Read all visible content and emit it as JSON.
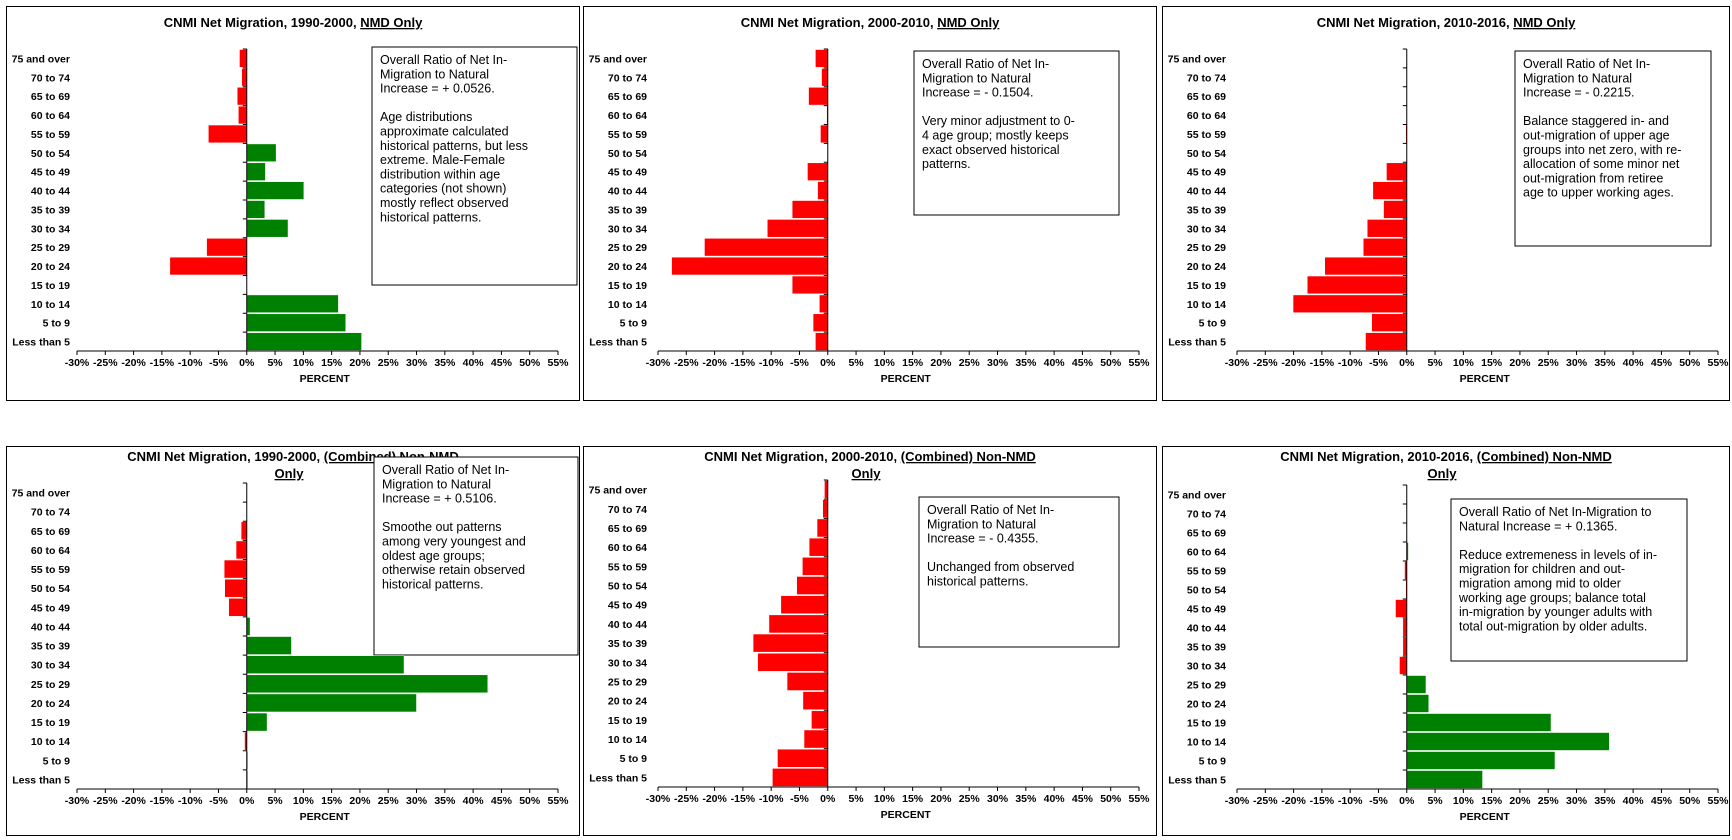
{
  "axis_label": "PERCENT",
  "colors": {
    "positive": "#008000",
    "negative": "#ff0000",
    "frame": "#000000",
    "note_bg": "#ffffff"
  },
  "chart_data": [
    {
      "type": "bar",
      "orientation": "horizontal",
      "title": "CNMI Net Migration, 1990-2000, ",
      "title_underlined": "NMD Only",
      "xlabel": "PERCENT",
      "xlim": [
        -30,
        55
      ],
      "x_ticks": [
        "-30%",
        "-25%",
        "-20%",
        "-15%",
        "-10%",
        "-5%",
        "0%",
        "5%",
        "10%",
        "15%",
        "20%",
        "25%",
        "30%",
        "35%",
        "40%",
        "45%",
        "50%",
        "55%"
      ],
      "categories": [
        "75 and over",
        "70 to 74",
        "65 to 69",
        "60 to 64",
        "55 to 59",
        "50 to 54",
        "45 to 49",
        "40 to 44",
        "35 to 39",
        "30 to 34",
        "25 to 29",
        "20 to 24",
        "15 to 19",
        "10 to 14",
        "5 to 9",
        "Less than 5"
      ],
      "values": [
        -1.3,
        -0.9,
        -1.7,
        -1.5,
        -6.8,
        5.2,
        3.3,
        10.1,
        3.2,
        7.3,
        -7.1,
        -13.6,
        0,
        16.2,
        17.5,
        20.3
      ],
      "note": [
        "Overall Ratio of Net In-",
        "Migration to Natural",
        "Increase = + 0.0526.",
        "",
        "Age distributions",
        "approximate calculated",
        "historical patterns, but less",
        "extreme. Male-Female",
        "distribution within age",
        "categories (not shown)",
        "mostly reflect observed",
        "historical patterns."
      ]
    },
    {
      "type": "bar",
      "orientation": "horizontal",
      "title": "CNMI Net Migration, 2000-2010, ",
      "title_underlined": "NMD Only",
      "xlabel": "PERCENT",
      "xlim": [
        -30,
        55
      ],
      "x_ticks": [
        "-30%",
        "-25%",
        "-20%",
        "-15%",
        "-10%",
        "-5%",
        "0%",
        "5%",
        "10%",
        "15%",
        "20%",
        "25%",
        "30%",
        "35%",
        "40%",
        "45%",
        "50%",
        "55%"
      ],
      "categories": [
        "75 and over",
        "70 to 74",
        "65 to 69",
        "60 to 64",
        "55 to 59",
        "50 to 54",
        "45 to 49",
        "40 to 44",
        "35 to 39",
        "30 to 34",
        "25 to 29",
        "20 to 24",
        "15 to 19",
        "10 to 14",
        "5 to 9",
        "Less than 5"
      ],
      "values": [
        -2.2,
        -1.1,
        -3.4,
        -0.2,
        -1.3,
        0,
        -3.6,
        -1.8,
        -6.3,
        -10.7,
        -21.8,
        -27.6,
        -6.3,
        -1.5,
        -2.6,
        -2.2
      ],
      "note": [
        "Overall Ratio of Net In-",
        "Migration to Natural",
        "Increase = - 0.1504.",
        "",
        "Very minor adjustment to 0-",
        "4 age group; mostly keeps",
        "exact observed historical",
        "patterns."
      ]
    },
    {
      "type": "bar",
      "orientation": "horizontal",
      "title": "CNMI Net Migration, 2010-2016, ",
      "title_underlined": "NMD Only",
      "xlabel": "PERCENT",
      "xlim": [
        -30,
        55
      ],
      "x_ticks": [
        "-30%",
        "-25%",
        "-20%",
        "-15%",
        "-10%",
        "-5%",
        "0%",
        "5%",
        "10%",
        "15%",
        "20%",
        "25%",
        "30%",
        "35%",
        "40%",
        "45%",
        "50%",
        "55%"
      ],
      "categories": [
        "75 and over",
        "70 to 74",
        "65 to 69",
        "60 to 64",
        "55 to 59",
        "50 to 54",
        "45 to 49",
        "40 to 44",
        "35 to 39",
        "30 to 34",
        "25 to 29",
        "20 to 24",
        "15 to 19",
        "10 to 14",
        "5 to 9",
        "Less than 5"
      ],
      "values": [
        0,
        0,
        0,
        0,
        -0.2,
        0,
        -3.6,
        -6.0,
        -4.1,
        -7.0,
        -7.7,
        -14.5,
        -17.6,
        -20.1,
        -6.2,
        -7.3
      ],
      "note": [
        "Overall Ratio of Net In-",
        "Migration to Natural",
        "Increase = - 0.2215.",
        "",
        "Balance staggered in- and",
        "out-migration of upper age",
        "groups into net zero, with re-",
        "allocation of some minor net",
        "out-migration from retiree",
        "age to upper working ages."
      ]
    },
    {
      "type": "bar",
      "orientation": "horizontal",
      "title": "CNMI Net Migration, 1990-2000, ",
      "title_underlined": "(Combined) Non-NMD",
      "title_line2": "Only",
      "xlabel": "PERCENT",
      "xlim": [
        -30,
        55
      ],
      "x_ticks": [
        "-30%",
        "-25%",
        "-20%",
        "-15%",
        "-10%",
        "-5%",
        "0%",
        "5%",
        "10%",
        "15%",
        "20%",
        "25%",
        "30%",
        "35%",
        "40%",
        "45%",
        "50%",
        "55%"
      ],
      "categories": [
        "75 and over",
        "70 to 74",
        "65 to 69",
        "60 to 64",
        "55 to 59",
        "50 to 54",
        "45 to 49",
        "40 to 44",
        "35 to 39",
        "30 to 34",
        "25 to 29",
        "20 to 24",
        "15 to 19",
        "10 to 14",
        "5 to 9",
        "Less than 5"
      ],
      "values": [
        0,
        0,
        -1.0,
        -1.9,
        -4.0,
        -3.9,
        -3.2,
        0.6,
        7.9,
        27.8,
        42.6,
        30.0,
        3.6,
        -0.4,
        0.2,
        0.2
      ],
      "note": [
        "Overall Ratio of Net In-",
        "Migration to Natural",
        "Increase = + 0.5106.",
        "",
        "Smoothe out patterns",
        "among very youngest and",
        "oldest age groups;",
        "otherwise retain observed",
        "historical patterns."
      ]
    },
    {
      "type": "bar",
      "orientation": "horizontal",
      "title": "CNMI Net Migration, 2000-2010, ",
      "title_underlined": "(Combined) Non-NMD",
      "title_line2": "Only",
      "xlabel": "PERCENT",
      "xlim": [
        -30,
        55
      ],
      "x_ticks": [
        "-30%",
        "-25%",
        "-20%",
        "-15%",
        "-10%",
        "-5%",
        "0%",
        "5%",
        "10%",
        "15%",
        "20%",
        "25%",
        "30%",
        "35%",
        "40%",
        "45%",
        "50%",
        "55%"
      ],
      "categories": [
        "75 and over",
        "70 to 74",
        "65 to 69",
        "60 to 64",
        "55 to 59",
        "50 to 54",
        "45 to 49",
        "40 to 44",
        "35 to 39",
        "30 to 34",
        "25 to 29",
        "20 to 24",
        "15 to 19",
        "10 to 14",
        "5 to 9",
        "Less than 5"
      ],
      "values": [
        -0.6,
        -0.9,
        -1.9,
        -3.3,
        -4.5,
        -5.5,
        -8.3,
        -10.4,
        -13.2,
        -12.4,
        -7.2,
        -4.4,
        -2.9,
        -4.2,
        -8.9,
        -9.8
      ],
      "note": [
        "Overall Ratio of Net In-",
        "Migration to Natural",
        "Increase = - 0.4355.",
        "",
        "Unchanged from observed",
        "historical patterns."
      ]
    },
    {
      "type": "bar",
      "orientation": "horizontal",
      "title": "CNMI Net Migration, 2010-2016, ",
      "title_underlined": "(Combined) Non-NMD",
      "title_line2": "Only",
      "xlabel": "PERCENT",
      "xlim": [
        -30,
        55
      ],
      "x_ticks": [
        "-30%",
        "-25%",
        "-20%",
        "-15%",
        "-10%",
        "-5%",
        "0%",
        "5%",
        "10%",
        "15%",
        "20%",
        "25%",
        "30%",
        "35%",
        "40%",
        "45%",
        "50%",
        "55%"
      ],
      "categories": [
        "75 and over",
        "70 to 74",
        "65 to 69",
        "60 to 64",
        "55 to 59",
        "50 to 54",
        "45 to 49",
        "40 to 44",
        "35 to 39",
        "30 to 34",
        "25 to 29",
        "20 to 24",
        "15 to 19",
        "10 to 14",
        "5 to 9",
        "Less than 5"
      ],
      "values": [
        0,
        0,
        0,
        0.3,
        -0.4,
        -0.2,
        -2.0,
        -0.7,
        -0.7,
        -1.3,
        3.4,
        3.9,
        25.5,
        35.8,
        26.2,
        13.4
      ],
      "note": [
        "Overall Ratio of Net In-Migration to",
        "Natural Increase = + 0.1365.",
        "",
        "Reduce extremeness in levels of in-",
        "migration for children and out-",
        "migration among mid to older",
        "working age groups; balance total",
        "in-migration by younger adults with",
        "total out-migration by older adults."
      ]
    }
  ]
}
